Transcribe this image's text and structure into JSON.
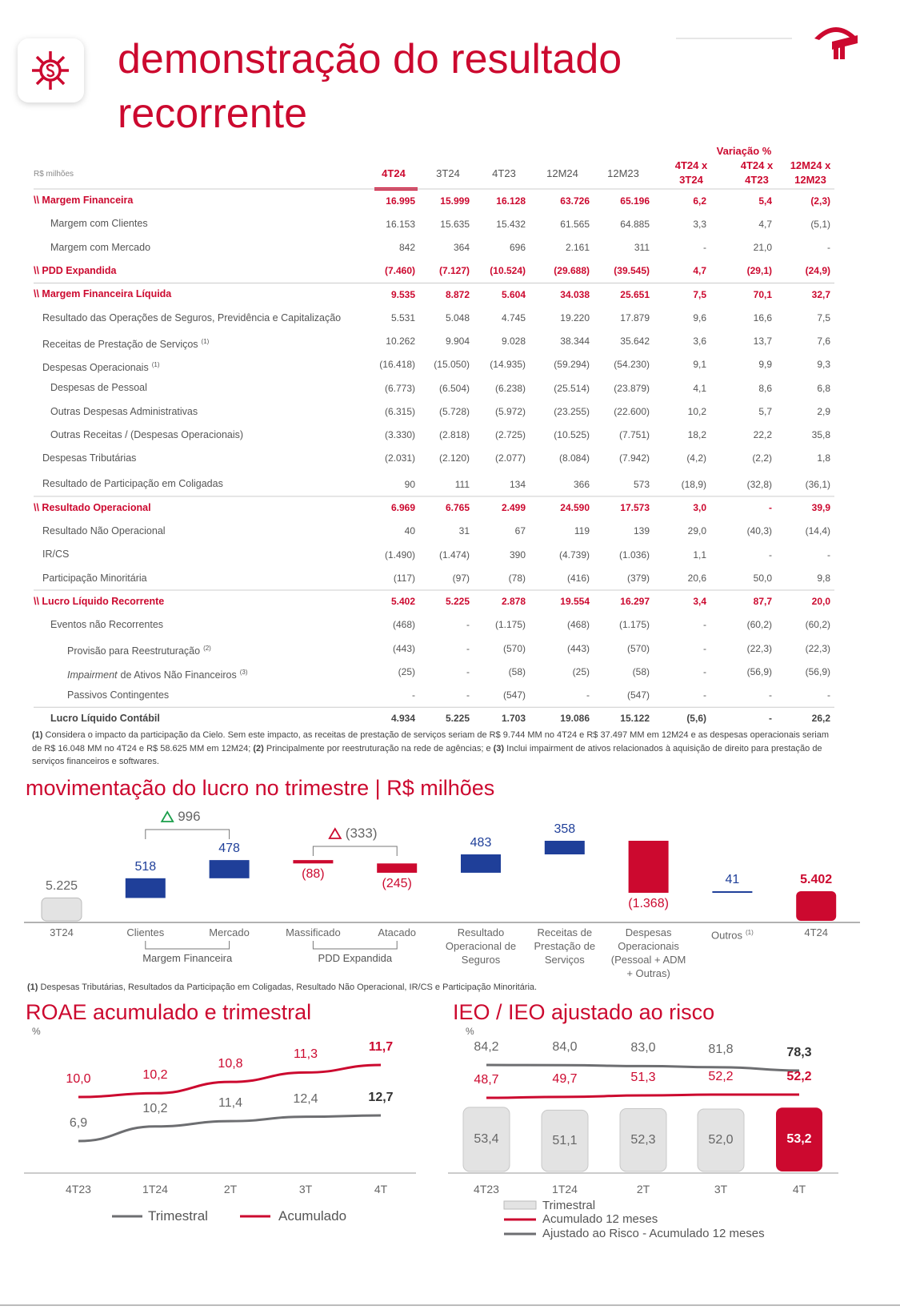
{
  "header": {
    "title": "demonstração do resultado recorrente"
  },
  "table": {
    "unit": "R$ milhões",
    "variation_label": "Variação %",
    "columns": [
      "4T24",
      "3T24",
      "4T23",
      "12M24",
      "12M23",
      "4T24 x 3T24",
      "4T24 x 4T23",
      "12M24 x 12M23"
    ],
    "rows": [
      {
        "label": "\\\\ Margem Financeira",
        "values": [
          "16.995",
          "15.999",
          "16.128",
          "63.726",
          "65.196",
          "6,2",
          "5,4",
          "(2,3)"
        ]
      },
      {
        "label": "Margem com Clientes",
        "values": [
          "16.153",
          "15.635",
          "15.432",
          "61.565",
          "64.885",
          "3,3",
          "4,7",
          "(5,1)"
        ]
      },
      {
        "label": "Margem com Mercado",
        "values": [
          "842",
          "364",
          "696",
          "2.161",
          "311",
          "-",
          "21,0",
          "-"
        ]
      },
      {
        "label": "\\\\ PDD Expandida",
        "values": [
          "(7.460)",
          "(7.127)",
          "(10.524)",
          "(29.688)",
          "(39.545)",
          "4,7",
          "(29,1)",
          "(24,9)"
        ]
      },
      {
        "label": "\\\\ Margem Financeira Líquida",
        "values": [
          "9.535",
          "8.872",
          "5.604",
          "34.038",
          "25.651",
          "7,5",
          "70,1",
          "32,7"
        ]
      },
      {
        "label": "Resultado das Operações de Seguros, Previdência e Capitalização",
        "values": [
          "5.531",
          "5.048",
          "4.745",
          "19.220",
          "17.879",
          "9,6",
          "16,6",
          "7,5"
        ]
      },
      {
        "label": "Receitas de Prestação de Serviços",
        "note": "(1)",
        "values": [
          "10.262",
          "9.904",
          "9.028",
          "38.344",
          "35.642",
          "3,6",
          "13,7",
          "7,6"
        ]
      },
      {
        "label": "Despesas Operacionais",
        "note": "(1)",
        "values": [
          "(16.418)",
          "(15.050)",
          "(14.935)",
          "(59.294)",
          "(54.230)",
          "9,1",
          "9,9",
          "9,3"
        ]
      },
      {
        "label": "Despesas de Pessoal",
        "values": [
          "(6.773)",
          "(6.504)",
          "(6.238)",
          "(25.514)",
          "(23.879)",
          "4,1",
          "8,6",
          "6,8"
        ]
      },
      {
        "label": "Outras Despesas Administrativas",
        "values": [
          "(6.315)",
          "(5.728)",
          "(5.972)",
          "(23.255)",
          "(22.600)",
          "10,2",
          "5,7",
          "2,9"
        ]
      },
      {
        "label": "Outras Receitas / (Despesas Operacionais)",
        "values": [
          "(3.330)",
          "(2.818)",
          "(2.725)",
          "(10.525)",
          "(7.751)",
          "18,2",
          "22,2",
          "35,8"
        ]
      },
      {
        "label": "Despesas Tributárias",
        "values": [
          "(2.031)",
          "(2.120)",
          "(2.077)",
          "(8.084)",
          "(7.942)",
          "(4,2)",
          "(2,2)",
          "1,8"
        ]
      },
      {
        "label": "Resultado de Participação em Coligadas",
        "values": [
          "90",
          "111",
          "134",
          "366",
          "573",
          "(18,9)",
          "(32,8)",
          "(36,1)"
        ]
      },
      {
        "label": "\\\\ Resultado Operacional",
        "values": [
          "6.969",
          "6.765",
          "2.499",
          "24.590",
          "17.573",
          "3,0",
          "-",
          "39,9"
        ]
      },
      {
        "label": "Resultado Não Operacional",
        "values": [
          "40",
          "31",
          "67",
          "119",
          "139",
          "29,0",
          "(40,3)",
          "(14,4)"
        ]
      },
      {
        "label": "IR/CS",
        "values": [
          "(1.490)",
          "(1.474)",
          "390",
          "(4.739)",
          "(1.036)",
          "1,1",
          "-",
          "-"
        ]
      },
      {
        "label": "Participação Minoritária",
        "values": [
          "(117)",
          "(97)",
          "(78)",
          "(416)",
          "(379)",
          "20,6",
          "50,0",
          "9,8"
        ]
      },
      {
        "label": "\\\\ Lucro Líquido Recorrente",
        "values": [
          "5.402",
          "5.225",
          "2.878",
          "19.554",
          "16.297",
          "3,4",
          "87,7",
          "20,0"
        ]
      },
      {
        "label": "Eventos não Recorrentes",
        "values": [
          "(468)",
          "-",
          "(1.175)",
          "(468)",
          "(1.175)",
          "-",
          "(60,2)",
          "(60,2)"
        ]
      },
      {
        "label": "Provisão para Reestruturação",
        "note": "(2)",
        "values": [
          "(443)",
          "-",
          "(570)",
          "(443)",
          "(570)",
          "-",
          "(22,3)",
          "(22,3)"
        ]
      },
      {
        "label_italic": "Impairment",
        "label": "de Ativos Não Financeiros",
        "note": "(3)",
        "values": [
          "(25)",
          "-",
          "(58)",
          "(25)",
          "(58)",
          "-",
          "(56,9)",
          "(56,9)"
        ]
      },
      {
        "label": "Passivos Contingentes",
        "values": [
          "-",
          "-",
          "(547)",
          "-",
          "(547)",
          "-",
          "-",
          "-"
        ]
      },
      {
        "label": "Lucro Líquido Contábil",
        "values": [
          "4.934",
          "5.225",
          "1.703",
          "19.086",
          "15.122",
          "(5,6)",
          "-",
          "26,2"
        ]
      }
    ],
    "footnotes": [
      {
        "mark": "(1)",
        "text": "Considera o impacto da participação da Cielo. Sem este impacto, as receitas de prestação de serviços seriam de R$ 9.744 MM no 4T24 e R$ 37.497 MM em 12M24 e as despesas operacionais seriam de R$ 16.048 MM no 4T24 e R$ 58.625 MM em 12M24;"
      },
      {
        "mark": "(2)",
        "text": "Principalmente por reestruturação na rede de agências; e"
      },
      {
        "mark": "(3)",
        "text": "Inclui impairment de ativos relacionados à aquisição de direito para prestação de serviços financeiros e softwares."
      }
    ]
  },
  "waterfall": {
    "type": "waterfall",
    "title": "movimentação do lucro no trimestre | R$ milhões",
    "categories": [
      "3T24",
      "Clientes",
      "Mercado",
      "Massificado",
      "Atacado",
      "Resultado Operacional de Seguros",
      "Receitas de Prestação de Serviços",
      "Despesas Operacionais (Pessoal + ADM + Outras)",
      "Outros",
      "4T24"
    ],
    "notes": [
      null,
      null,
      null,
      null,
      null,
      null,
      null,
      null,
      "(1)",
      null
    ],
    "values": [
      5225,
      518,
      478,
      -88,
      -245,
      483,
      358,
      -1368,
      41,
      5402
    ],
    "value_labels": [
      "5.225",
      "518",
      "478",
      "(88)",
      "(245)",
      "483",
      "358",
      "(1.368)",
      "41",
      "5.402"
    ],
    "colors": {
      "start": "#e3e3e3",
      "end": "#cc092f",
      "positive": "#1f3f99",
      "negative": "#cc092f"
    },
    "groups": [
      {
        "label": "Margem Financeira",
        "delta": "996",
        "delta_color": "#1a9e4a"
      },
      {
        "label": "PDD Expandida",
        "delta": "(333)",
        "delta_color": "#cc092f"
      }
    ],
    "footnote": {
      "mark": "(1)",
      "text": "Despesas Tributárias, Resultados da Participação em Coligadas, Resultado Não Operacional, IR/CS e Participação Minoritária."
    }
  },
  "roae": {
    "type": "line",
    "title": "ROAE acumulado e trimestral",
    "unit": "%",
    "categories": [
      "4T23",
      "1T24",
      "2T",
      "3T",
      "4T"
    ],
    "series": [
      {
        "name": "Trimestral",
        "color": "#6d6e71",
        "values": [
          6.9,
          10.2,
          11.4,
          12.4,
          12.7
        ],
        "value_labels": [
          "6,9",
          "10,2",
          "11,4",
          "12,4",
          "12,7"
        ]
      },
      {
        "name": "Acumulado",
        "color": "#cc092f",
        "values": [
          10.0,
          10.2,
          10.8,
          11.3,
          11.7
        ],
        "value_labels": [
          "10,0",
          "10,2",
          "10,8",
          "11,3",
          "11,7"
        ]
      }
    ]
  },
  "ieo": {
    "type": "bar_line",
    "title": "IEO / IEO ajustado ao risco",
    "unit": "%",
    "categories": [
      "4T23",
      "1T24",
      "2T",
      "3T",
      "4T"
    ],
    "series": [
      {
        "name": "Trimestral",
        "type": "bar",
        "color": "#e3e3e3",
        "highlight_color": "#cc092f",
        "values": [
          53.4,
          51.1,
          52.3,
          52.0,
          53.2
        ],
        "value_labels": [
          "53,4",
          "51,1",
          "52,3",
          "52,0",
          "53,2"
        ]
      },
      {
        "name": "Acumulado 12 meses",
        "type": "line",
        "color": "#cc092f",
        "values": [
          48.7,
          49.7,
          51.3,
          52.2,
          52.2
        ],
        "value_labels": [
          "48,7",
          "49,7",
          "51,3",
          "52,2",
          "52,2"
        ]
      },
      {
        "name": "Ajustado ao Risco - Acumulado 12 meses",
        "type": "line",
        "color": "#6d6e71",
        "values": [
          84.2,
          84.0,
          83.0,
          81.8,
          78.3
        ],
        "value_labels": [
          "84,2",
          "84,0",
          "83,0",
          "81,8",
          "78,3"
        ]
      }
    ]
  }
}
